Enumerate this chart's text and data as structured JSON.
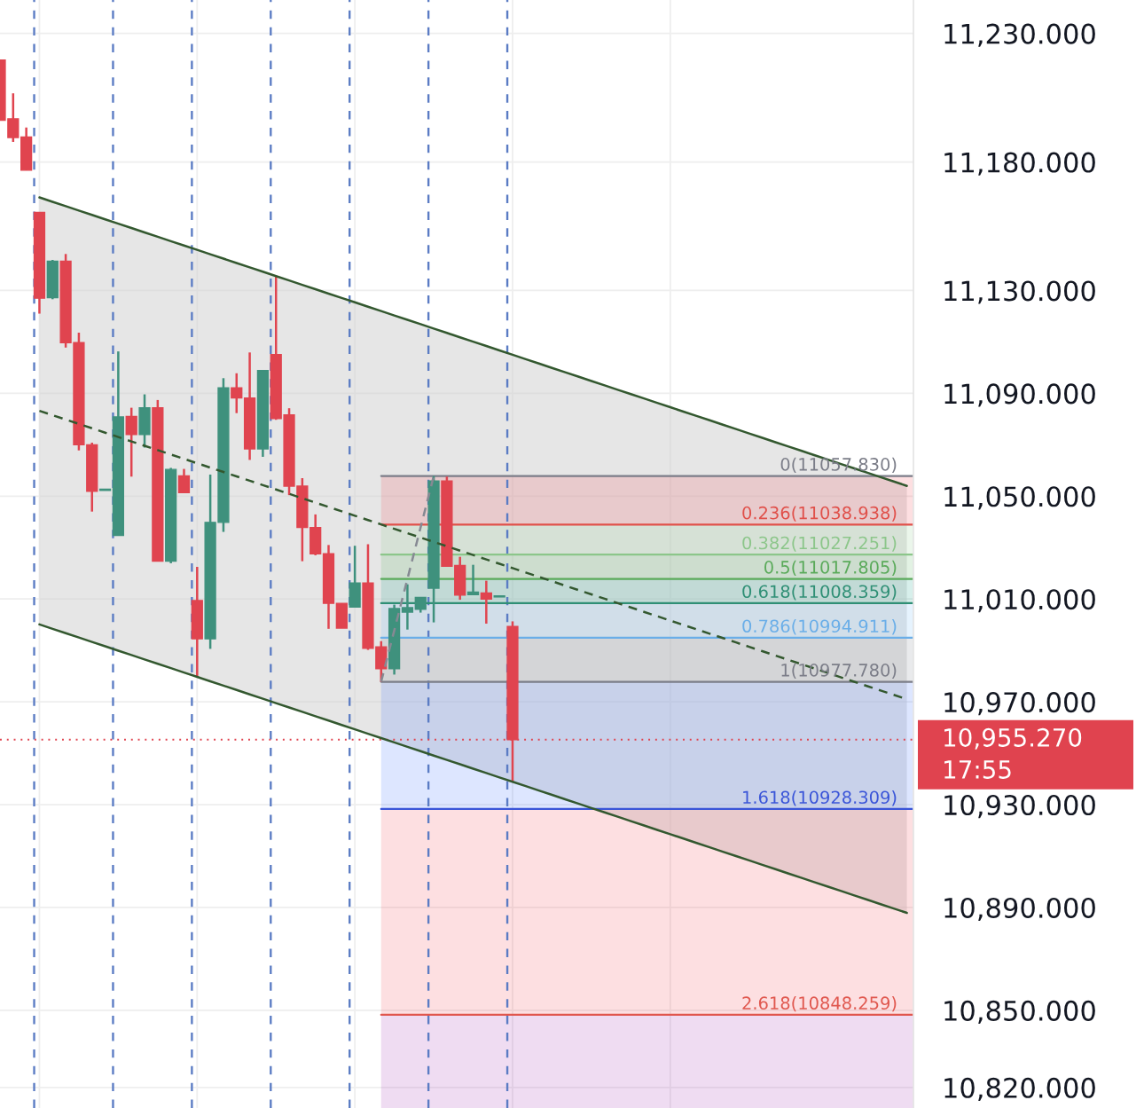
{
  "chart_data": {
    "type": "candlestick",
    "categories": [
      null,
      null,
      null,
      null,
      null,
      null,
      null,
      null,
      null,
      null,
      null,
      null,
      null,
      null,
      null,
      null,
      null,
      null,
      null,
      null,
      null,
      null,
      null,
      null,
      null,
      null,
      null,
      null,
      null,
      null,
      null,
      null,
      null,
      null,
      null,
      null,
      null,
      null,
      null,
      null,
      null,
      null,
      null,
      null,
      null,
      null,
      null,
      null,
      null,
      null,
      null,
      null,
      null,
      null,
      null,
      null,
      null,
      null,
      null,
      null,
      null,
      null,
      null,
      null,
      null,
      null,
      null,
      null,
      null,
      null
    ],
    "ohlc": [
      [
        11219.6,
        11219.6,
        11196.2,
        11196.2
      ],
      [
        11196.8,
        11206.7,
        11187.8,
        11189.5
      ],
      [
        11189.7,
        11193.4,
        11176.8,
        11176.8
      ],
      [
        11160.4,
        11160.4,
        11121.0,
        11127.0
      ],
      [
        11127.2,
        11141.9,
        11126.6,
        11141.4
      ],
      [
        11141.4,
        11144.2,
        11107.8,
        11109.7
      ],
      [
        11109.7,
        11113.6,
        11067.8,
        11070.0
      ],
      [
        11070.0,
        11070.8,
        11044.0,
        11051.9
      ],
      [
        11052.2,
        11052.7,
        11052.2,
        11052.7
      ],
      [
        11034.7,
        11106.3,
        11034.7,
        11080.8
      ],
      [
        11081.0,
        11084.4,
        11057.6,
        11074.0
      ],
      [
        11074.0,
        11089.6,
        11068.9,
        11084.4
      ],
      [
        11084.4,
        11087.4,
        11024.7,
        11024.7
      ],
      [
        11024.7,
        11061.0,
        11023.9,
        11060.4
      ],
      [
        11057.9,
        11060.6,
        11051.4,
        11051.4
      ],
      [
        11009.4,
        11022.5,
        10979.5,
        10994.5
      ],
      [
        10994.5,
        11058.4,
        10990.6,
        11039.8
      ],
      [
        11039.8,
        11095.9,
        11036.1,
        11092.1
      ],
      [
        11092.1,
        11097.8,
        11082.3,
        11088.2
      ],
      [
        11088.2,
        11105.9,
        11064.1,
        11068.4
      ],
      [
        11068.4,
        11098.9,
        11065.3,
        11098.9
      ],
      [
        11105.1,
        11135.7,
        11079.7,
        11080.2
      ],
      [
        11081.6,
        11084.2,
        11050.4,
        11053.9
      ],
      [
        11053.9,
        11057.0,
        11024.7,
        11037.8
      ],
      [
        11037.8,
        11042.9,
        11027.0,
        11027.6
      ],
      [
        11027.6,
        11031.0,
        10998.4,
        11008.3
      ],
      [
        11008.3,
        11008.3,
        10998.7,
        10998.7
      ],
      [
        11006.9,
        11030.7,
        11006.9,
        11016.2
      ],
      [
        11016.2,
        11031.3,
        10990.2,
        10990.8
      ],
      [
        10991.4,
        10993.6,
        10977.78,
        10982.9
      ],
      [
        10982.9,
        11007.8,
        10980.6,
        11006.3
      ],
      [
        11004.9,
        11015.7,
        10998.1,
        11006.6
      ],
      [
        11006.0,
        11010.6,
        11004.7,
        11010.6
      ],
      [
        11014.2,
        11057.83,
        11000.9,
        11055.9
      ],
      [
        11055.9,
        11057.6,
        11022.7,
        11022.7
      ],
      [
        11023.0,
        11026.4,
        11009.7,
        11011.5
      ],
      [
        11011.7,
        11023.3,
        11011.5,
        11012.7
      ],
      [
        11012.3,
        11017.1,
        11000.4,
        11010.0
      ],
      [
        11010.8,
        11011.2,
        11010.8,
        11011.2
      ],
      [
        10999.3,
        11001.3,
        10938.7,
        10955.27
      ],
      null,
      null,
      null,
      null,
      null,
      null,
      null,
      null,
      null,
      null,
      null,
      null,
      null,
      null,
      null,
      null,
      null,
      null,
      null,
      null,
      null,
      null,
      null,
      null,
      null,
      null,
      null,
      null,
      null,
      null
    ],
    "colors": [
      "#e0444f",
      "#e0444f",
      "#e0444f",
      "#e0444f",
      "#3f917d",
      "#e0444f",
      "#e0444f",
      "#e0444f",
      "#3f917d",
      "#3f917d",
      "#e0444f",
      "#3f917d",
      "#e0444f",
      "#3f917d",
      "#e0444f",
      "#e0444f",
      "#3f917d",
      "#3f917d",
      "#e0444f",
      "#e0444f",
      "#3f917d",
      "#e0444f",
      "#e0444f",
      "#e0444f",
      "#e0444f",
      "#e0444f",
      "#e0444f",
      "#3f917d",
      "#e0444f",
      "#e0444f",
      "#3f917d",
      "#3f917d",
      "#3f917d",
      "#3f917d",
      "#e0444f",
      "#e0444f",
      "#3f917d",
      "#e0444f",
      "#3f917d",
      "#e0444f",
      null,
      null,
      null,
      null,
      null,
      null,
      null,
      null,
      null,
      null,
      null,
      null,
      null,
      null,
      null,
      null,
      null,
      null,
      null,
      null,
      null,
      null,
      null,
      null,
      null,
      null,
      null,
      null,
      null,
      null
    ],
    "series": [
      {
        "type": "line",
        "color": "#33582f",
        "line_style": "solid",
        "values": [
          null,
          null,
          null,
          11166.2,
          11164.5,
          11162.8,
          11161.1,
          11159.4,
          11157.7,
          11156.0,
          11154.3,
          11152.6,
          11150.9,
          11149.2,
          11147.5,
          11145.8,
          11144.1,
          11142.4,
          11140.7,
          11139.0,
          11137.3,
          11135.6,
          11133.9,
          11132.2,
          11130.5,
          11128.8,
          11127.1,
          11125.4,
          11123.7,
          11122.0,
          11120.3,
          11118.6,
          11116.9,
          11115.2,
          11113.5,
          11111.8,
          11110.1,
          11108.4,
          11106.7,
          11105.0,
          11103.3,
          11101.6,
          11099.9,
          11098.2,
          11096.5,
          11094.8,
          11093.1,
          11091.4,
          11089.7,
          11088.0,
          11086.3,
          11084.6,
          11082.9,
          11081.2,
          11079.5,
          11077.8,
          11076.1,
          11074.4,
          11072.7,
          11071.0,
          11069.3,
          11067.6,
          11065.9,
          11064.2,
          11062.5,
          11060.8,
          11059.1,
          11057.4,
          11055.7,
          11054.0
        ]
      },
      {
        "type": "line",
        "color": "#33582f",
        "line_style": "dashed",
        "values": [
          null,
          null,
          null,
          11083.2,
          11081.5,
          11079.8,
          11078.1,
          11076.4,
          11074.7,
          11073.0,
          11071.3,
          11069.6,
          11067.9,
          11066.2,
          11064.5,
          11062.8,
          11061.1,
          11059.4,
          11057.7,
          11056.0,
          11054.3,
          11052.6,
          11050.9,
          11049.2,
          11047.5,
          11045.8,
          11044.1,
          11042.4,
          11040.7,
          11039.0,
          11037.3,
          11035.6,
          11033.9,
          11032.2,
          11030.5,
          11028.8,
          11027.1,
          11025.4,
          11023.7,
          11022.0,
          11020.3,
          11018.6,
          11016.9,
          11015.2,
          11013.5,
          11011.8,
          11010.1,
          11008.4,
          11006.7,
          11005.0,
          11003.3,
          11001.6,
          10999.9,
          10998.2,
          10996.5,
          10994.8,
          10993.1,
          10991.4,
          10989.7,
          10988.0,
          10986.3,
          10984.6,
          10982.9,
          10981.2,
          10979.5,
          10977.8,
          10976.1,
          10974.4,
          10972.7,
          10971.0
        ],
        "upper": [
          null,
          null,
          null,
          11166.2,
          11164.5,
          11162.8,
          11161.1,
          11159.4,
          11157.7,
          11156.0,
          11154.3,
          11152.6,
          11150.9,
          11149.2,
          11147.5,
          11145.8,
          11144.1,
          11142.4,
          11140.7,
          11139.0,
          11137.3,
          11135.6,
          11133.9,
          11132.2,
          11130.5,
          11128.8,
          11127.1,
          11125.4,
          11123.7,
          11122.0,
          11120.3,
          11118.6,
          11116.9,
          11115.2,
          11113.5,
          11111.8,
          11110.1,
          11108.4,
          11106.7,
          11105.0,
          11103.3,
          11101.6,
          11099.9,
          11098.2,
          11096.5,
          11094.8,
          11093.1,
          11091.4,
          11089.7,
          11088.0,
          11086.3,
          11084.6,
          11082.9,
          11081.2,
          11079.5,
          11077.8,
          11076.1,
          11074.4,
          11072.7,
          11071.0,
          11069.3,
          11067.6,
          11065.9,
          11064.2,
          11062.5,
          11060.8,
          11059.1,
          11057.4,
          11055.7,
          11054.0
        ],
        "lower": [
          null,
          null,
          null,
          11000.1,
          10998.4,
          10996.7,
          10995.0,
          10993.3,
          10991.6,
          10989.9,
          10988.2,
          10986.5,
          10984.8,
          10983.1,
          10981.4,
          10979.7,
          10978.0,
          10976.3,
          10974.6,
          10972.9,
          10971.2,
          10969.5,
          10967.8,
          10966.1,
          10964.4,
          10962.7,
          10961.0,
          10959.3,
          10957.6,
          10955.9,
          10954.2,
          10952.5,
          10950.8,
          10949.1,
          10947.4,
          10945.7,
          10944.0,
          10942.3,
          10940.6,
          10938.9,
          10937.2,
          10935.5,
          10933.8,
          10932.1,
          10930.4,
          10928.7,
          10927.0,
          10925.3,
          10923.6,
          10921.9,
          10920.2,
          10918.5,
          10916.8,
          10915.1,
          10913.4,
          10911.7,
          10910.0,
          10908.3,
          10906.6,
          10904.9,
          10903.2,
          10901.5,
          10899.8,
          10898.1,
          10896.4,
          10894.7,
          10893.0,
          10891.3,
          10889.6,
          10887.9
        ]
      },
      {
        "type": "line",
        "color": "#33582f",
        "line_style": "solid",
        "values": [
          null,
          null,
          null,
          11000.1,
          10998.4,
          10996.7,
          10995.0,
          10993.3,
          10991.6,
          10989.9,
          10988.2,
          10986.5,
          10984.8,
          10983.1,
          10981.4,
          10979.7,
          10978.0,
          10976.3,
          10974.6,
          10972.9,
          10971.2,
          10969.5,
          10967.8,
          10966.1,
          10964.4,
          10962.7,
          10961.0,
          10959.3,
          10957.6,
          10955.9,
          10954.2,
          10952.5,
          10950.8,
          10949.1,
          10947.4,
          10945.7,
          10944.0,
          10942.3,
          10940.6,
          10938.9,
          10937.2,
          10935.5,
          10933.8,
          10932.1,
          10930.4,
          10928.7,
          10927.0,
          10925.3,
          10923.6,
          10921.9,
          10920.2,
          10918.5,
          10916.8,
          10915.1,
          10913.4,
          10911.7,
          10910.0,
          10908.3,
          10906.6,
          10904.9,
          10903.2,
          10901.5,
          10899.8,
          10898.1,
          10896.4,
          10894.7,
          10893.0,
          10891.3,
          10889.6,
          10887.9
        ]
      },
      {
        "type": "line",
        "color": "#868993",
        "line_style": "dashed",
        "values": [
          null,
          null,
          null,
          null,
          null,
          null,
          null,
          null,
          null,
          null,
          null,
          null,
          null,
          null,
          null,
          null,
          null,
          null,
          null,
          null,
          null,
          null,
          null,
          null,
          null,
          null,
          null,
          null,
          null,
          10977.8,
          10997.8,
          11017.8,
          11037.8,
          11057.8,
          null,
          null,
          null,
          null,
          null,
          null,
          null,
          null,
          null,
          null,
          null,
          null,
          null,
          null,
          null,
          null,
          null,
          null,
          null,
          null,
          null,
          null,
          null,
          null,
          null,
          null,
          null,
          null,
          null,
          null,
          null,
          null,
          null,
          null,
          null,
          null
        ]
      }
    ],
    "ylim": [
      10812,
      11243
    ],
    "yticks": [
      {
        "value": 11230,
        "label": "11,230.000"
      },
      {
        "value": 11180,
        "label": "11,180.000"
      },
      {
        "value": 11130,
        "label": "11,130.000"
      },
      {
        "value": 11090,
        "label": "11,090.000"
      },
      {
        "value": 11050,
        "label": "11,050.000"
      },
      {
        "value": 11010,
        "label": "11,010.000"
      },
      {
        "value": 10970,
        "label": "10,970.000"
      },
      {
        "value": 10930,
        "label": "10,930.000"
      },
      {
        "value": 10890,
        "label": "10,890.000"
      },
      {
        "value": 10850,
        "label": "10,850.000"
      },
      {
        "value": 10820,
        "label": "10,820.000"
      }
    ],
    "tick_labels": "y",
    "grid": true,
    "bands": [
      {
        "axis": "y",
        "from": 11057.83,
        "to": 11038.938,
        "color": "#f23645"
      },
      {
        "axis": "y",
        "from": 11038.938,
        "to": 11027.251,
        "color": "#81c784"
      },
      {
        "axis": "y",
        "from": 11027.251,
        "to": 11017.805,
        "color": "#4caf50"
      },
      {
        "axis": "y",
        "from": 11017.805,
        "to": 11008.359,
        "color": "#089981"
      },
      {
        "axis": "y",
        "from": 11008.359,
        "to": 10994.911,
        "color": "#64b5f6"
      },
      {
        "axis": "y",
        "from": 10994.911,
        "to": 10977.78,
        "color": "#787b86"
      },
      {
        "axis": "y",
        "from": 10977.78,
        "to": 10928.309,
        "color": "#2962ff"
      },
      {
        "axis": "y",
        "from": 10928.309,
        "to": 10848.259,
        "color": "#f23645"
      },
      {
        "axis": "y",
        "from": 10848.259,
        "to": 10812,
        "color": "#9c27b0"
      }
    ],
    "ref_lines": [
      {
        "axis": "y",
        "value": 11057.83,
        "label": "0(11057.830)",
        "color": "#7b7d88"
      },
      {
        "axis": "y",
        "value": 11038.938,
        "label": "0.236(11038.938)",
        "color": "#e0504a"
      },
      {
        "axis": "y",
        "value": 11027.251,
        "label": "0.382(11027.251)",
        "color": "#8cc68a"
      },
      {
        "axis": "y",
        "value": 11017.805,
        "label": "0.5(11017.805)",
        "color": "#5aaa5a"
      },
      {
        "axis": "y",
        "value": 11008.359,
        "label": "0.618(11008.359)",
        "color": "#2f8f75"
      },
      {
        "axis": "y",
        "value": 10994.911,
        "label": "0.786(10994.911)",
        "color": "#6aaee8"
      },
      {
        "axis": "y",
        "value": 10977.78,
        "label": "1(10977.780)",
        "color": "#7b7d88"
      },
      {
        "axis": "y",
        "value": 10928.309,
        "label": "1.618(10928.309)",
        "color": "#3a55d8"
      },
      {
        "axis": "y",
        "value": 10848.259,
        "label": "2.618(10848.259)",
        "color": "#e0574e"
      },
      {
        "axis": "y",
        "value": 10955.27,
        "label": "10,955.270",
        "color": "#e0434f",
        "line_style": "dotted"
      }
    ],
    "annotations": [
      "17:55"
    ]
  }
}
